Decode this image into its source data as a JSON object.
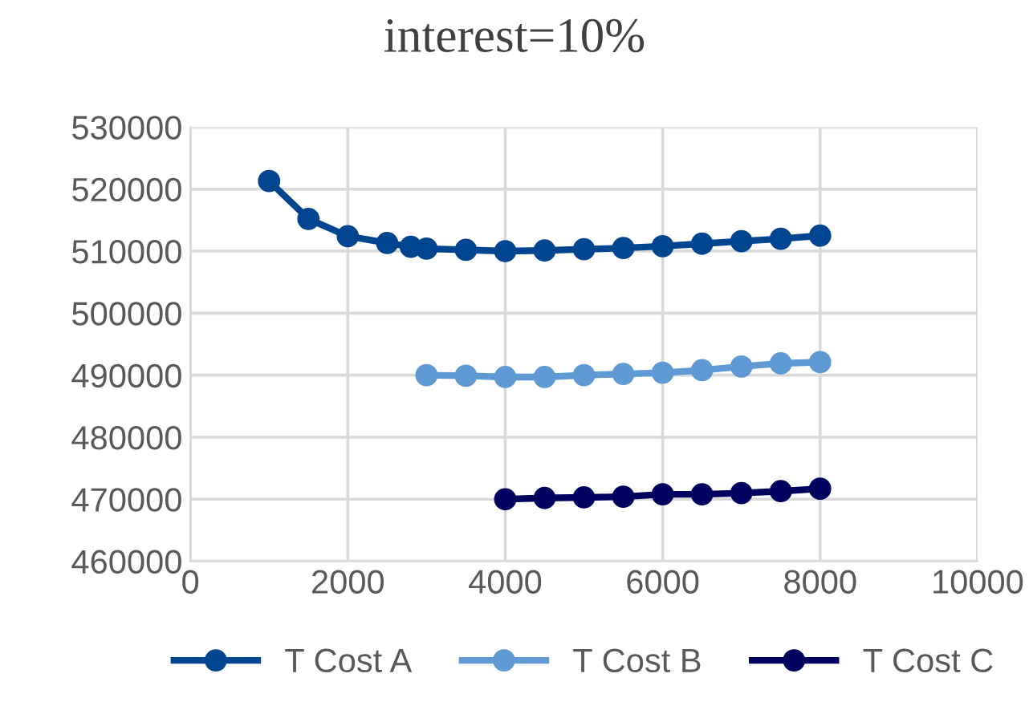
{
  "chart_data": {
    "type": "line",
    "title": "interest=10%",
    "series": [
      {
        "name": "T Cost A",
        "color": "#004590",
        "x": [
          1000,
          1500,
          2000,
          2500,
          2800,
          3000,
          3500,
          4000,
          4500,
          5000,
          5500,
          6000,
          6500,
          7000,
          7500,
          8000
        ],
        "values": [
          521300,
          515200,
          512400,
          511300,
          510700,
          510400,
          510200,
          510000,
          510100,
          510300,
          510500,
          510800,
          511200,
          511600,
          512000,
          512500
        ]
      },
      {
        "name": "T Cost B",
        "color": "#5f9ad4",
        "x": [
          3000,
          3500,
          4000,
          4500,
          5000,
          5500,
          6000,
          6500,
          7000,
          7500,
          8000
        ],
        "values": [
          490000,
          489900,
          489700,
          489700,
          490000,
          490200,
          490400,
          490800,
          491400,
          491900,
          492100
        ]
      },
      {
        "name": "T Cost C",
        "color": "#00005e",
        "x": [
          4000,
          4500,
          5000,
          5500,
          6000,
          6500,
          7000,
          7500,
          8000
        ],
        "values": [
          470000,
          470200,
          470300,
          470400,
          470800,
          470800,
          471000,
          471300,
          471700
        ]
      }
    ],
    "xlim": [
      0,
      10000
    ],
    "xticks": [
      0,
      2000,
      4000,
      6000,
      8000,
      10000
    ],
    "ylim": [
      460000,
      530000
    ],
    "yticks": [
      460000,
      470000,
      480000,
      490000,
      500000,
      510000,
      520000,
      530000
    ],
    "grid": true,
    "legend": "bottom",
    "marker": "circle",
    "line_style": "solid"
  }
}
